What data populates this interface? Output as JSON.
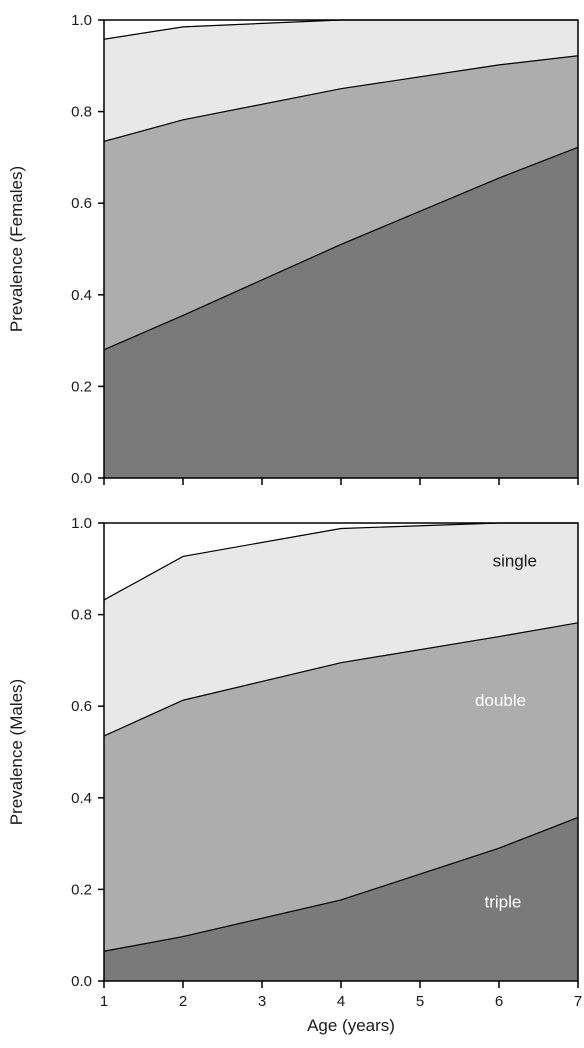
{
  "chart_data": [
    {
      "type": "area",
      "subtype": "stacked",
      "ylabel": "Prevalence (Females)",
      "xlabel": "",
      "x": [
        1,
        2,
        4,
        6,
        7
      ],
      "xticks": [
        1,
        2,
        3,
        4,
        5,
        6,
        7
      ],
      "show_xtick_labels": false,
      "yticks": [
        "0.0",
        "0.2",
        "0.4",
        "0.6",
        "0.8",
        "1.0"
      ],
      "xlim": [
        1,
        7
      ],
      "ylim": [
        0,
        1
      ],
      "grid": false,
      "series": [
        {
          "key": "triple",
          "cumulative": [
            0.28,
            0.355,
            0.51,
            0.655,
            0.722
          ],
          "color": "#7a7a7a"
        },
        {
          "key": "double",
          "cumulative": [
            0.735,
            0.782,
            0.85,
            0.902,
            0.922
          ],
          "color": "#adadad"
        },
        {
          "key": "single",
          "cumulative": [
            0.958,
            0.985,
            1.0,
            1.0,
            1.0
          ],
          "color": "#e8e8e8"
        }
      ],
      "labels": []
    },
    {
      "type": "area",
      "subtype": "stacked",
      "ylabel": "Prevalence (Males)",
      "xlabel": "Age (years)",
      "x": [
        1,
        2,
        4,
        6,
        7
      ],
      "xticks": [
        1,
        2,
        3,
        4,
        5,
        6,
        7
      ],
      "show_xtick_labels": true,
      "yticks": [
        "0.0",
        "0.2",
        "0.4",
        "0.6",
        "0.8",
        "1.0"
      ],
      "xlim": [
        1,
        7
      ],
      "ylim": [
        0,
        1
      ],
      "grid": false,
      "series": [
        {
          "key": "triple",
          "cumulative": [
            0.065,
            0.097,
            0.177,
            0.29,
            0.357
          ],
          "color": "#7a7a7a"
        },
        {
          "key": "double",
          "cumulative": [
            0.535,
            0.613,
            0.695,
            0.752,
            0.782
          ],
          "color": "#adadad"
        },
        {
          "key": "single",
          "cumulative": [
            0.832,
            0.927,
            0.988,
            1.0,
            1.0
          ],
          "color": "#e8e8e8"
        }
      ],
      "labels": [
        {
          "text": "single",
          "x": 6.2,
          "y": 0.905,
          "color": "#1a1a1a"
        },
        {
          "text": "double",
          "x": 6.02,
          "y": 0.6,
          "color": "#ffffff"
        },
        {
          "text": "triple",
          "x": 6.05,
          "y": 0.16,
          "color": "#ffffff"
        }
      ]
    }
  ]
}
